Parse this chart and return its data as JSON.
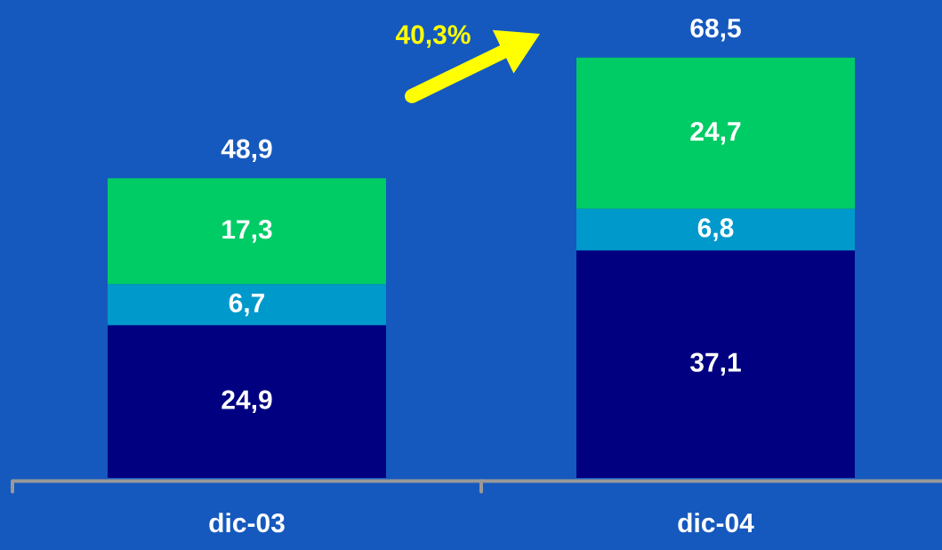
{
  "chart_data": {
    "type": "bar",
    "stacked": true,
    "categories": [
      "dic-03",
      "dic-04"
    ],
    "series": [
      {
        "color": "#000080",
        "values": [
          24.9,
          37.1
        ],
        "value_labels": [
          "24,9",
          "37,1"
        ]
      },
      {
        "color": "#0099cc",
        "values": [
          6.7,
          6.8
        ],
        "value_labels": [
          "6,7",
          "6,8"
        ]
      },
      {
        "color": "#00cc66",
        "values": [
          17.3,
          24.7
        ],
        "value_labels": [
          "17,3",
          "24,7"
        ]
      }
    ],
    "totals": [
      "48,9",
      "68,5"
    ],
    "ylim": [
      -0.5,
      78
    ],
    "annotations": [
      "40,3%"
    ]
  }
}
